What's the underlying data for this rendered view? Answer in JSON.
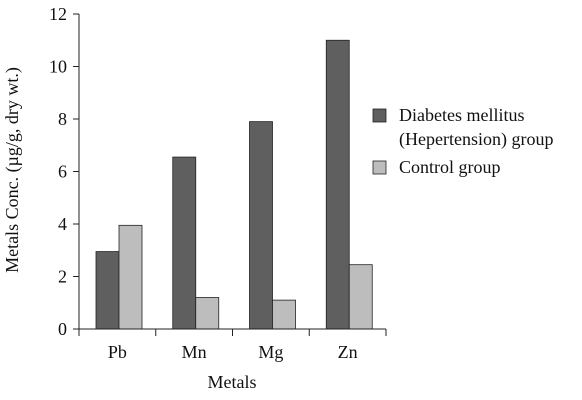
{
  "chart_data": {
    "type": "bar",
    "title": "",
    "xlabel": "Metals",
    "ylabel": "Metals Conc. (µg/g, dry wt.)",
    "categories": [
      "Pb",
      "Mn",
      "Mg",
      "Zn"
    ],
    "series": [
      {
        "name": "Diabetes mellitus (Hepertension) group",
        "legend_lines": [
          "Diabetes mellitus",
          "(Hepertension) group"
        ],
        "color": "#5f5f5f",
        "values": [
          2.95,
          6.55,
          7.9,
          11.0
        ]
      },
      {
        "name": "Control group",
        "legend_lines": [
          "Control group"
        ],
        "color": "#bdbdbd",
        "values": [
          3.95,
          1.2,
          1.1,
          2.45
        ]
      }
    ],
    "ylim": [
      0,
      12
    ],
    "yticks": [
      0,
      2,
      4,
      6,
      8,
      10,
      12
    ],
    "grid": false,
    "legend_position": "right"
  }
}
